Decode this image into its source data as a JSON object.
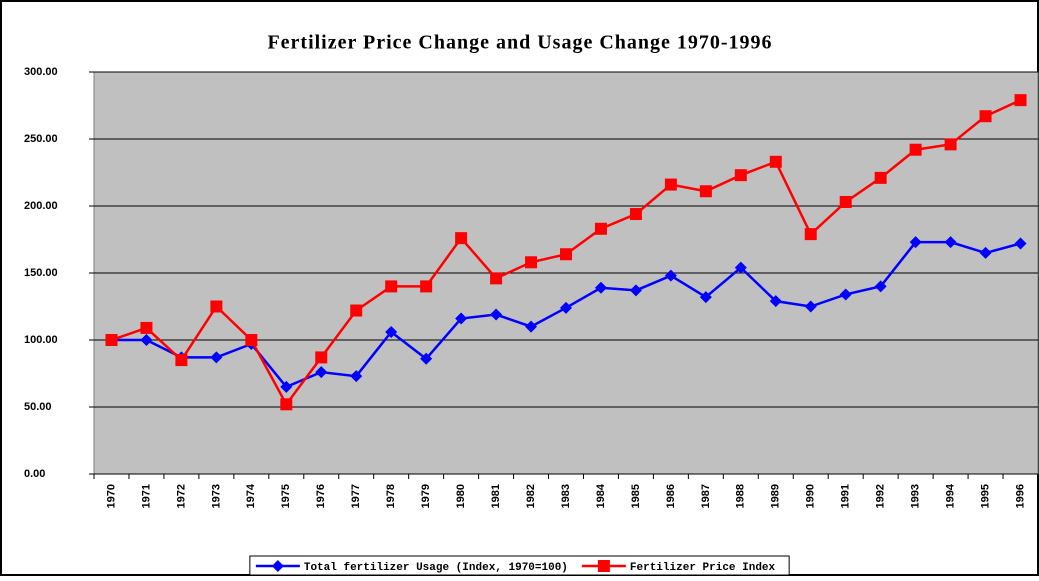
{
  "chart_data": {
    "type": "line",
    "title": "Fertilizer Price Change and Usage Change 1970-1996",
    "categories": [
      "1970",
      "1971",
      "1972",
      "1973",
      "1974",
      "1975",
      "1976",
      "1977",
      "1978",
      "1979",
      "1980",
      "1981",
      "1982",
      "1983",
      "1984",
      "1985",
      "1986",
      "1987",
      "1988",
      "1989",
      "1990",
      "1991",
      "1992",
      "1993",
      "1994",
      "1995",
      "1996"
    ],
    "series": [
      {
        "name": "Total fertilizer Usage (Index, 1970=100)",
        "color": "#0000ff",
        "marker": "diamond",
        "values": [
          100,
          100,
          87,
          87,
          97,
          65,
          76,
          73,
          106,
          86,
          116,
          119,
          110,
          124,
          139,
          137,
          148,
          132,
          154,
          129,
          125,
          134,
          140,
          173,
          173,
          165,
          172
        ]
      },
      {
        "name": "Fertilizer Price Index",
        "color": "#ff0000",
        "marker": "square",
        "values": [
          100,
          109,
          85,
          125,
          100,
          52,
          87,
          122,
          140,
          140,
          176,
          146,
          158,
          164,
          183,
          194,
          216,
          211,
          223,
          233,
          179,
          203,
          221,
          242,
          246,
          267,
          279
        ]
      }
    ],
    "ylim": [
      0,
      300
    ],
    "yticks": [
      {
        "value": 0,
        "label": "0.00"
      },
      {
        "value": 50,
        "label": "50.00"
      },
      {
        "value": 100,
        "label": "100.00"
      },
      {
        "value": 150,
        "label": "150.00"
      },
      {
        "value": 200,
        "label": "200.00"
      },
      {
        "value": 250,
        "label": "250.00"
      },
      {
        "value": 300,
        "label": "300.00"
      }
    ],
    "grid": true,
    "plot_background": "#c0c0c0",
    "legend": "bottom"
  }
}
